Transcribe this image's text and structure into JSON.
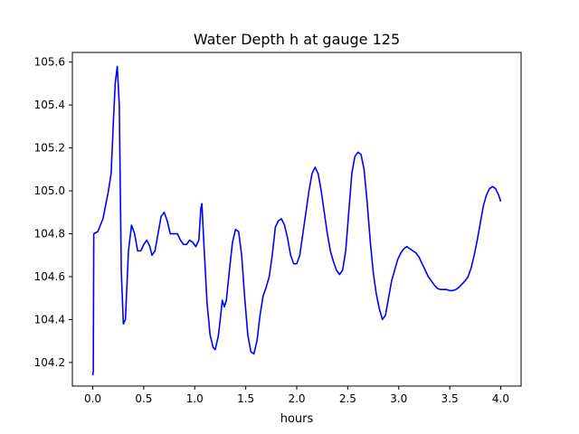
{
  "chart_data": {
    "type": "line",
    "title": "Water Depth h at gauge 125",
    "xlabel": "hours",
    "ylabel": "",
    "xlim": [
      -0.2,
      4.2
    ],
    "ylim": [
      104.09,
      105.645
    ],
    "grid": false,
    "x_ticks": [
      0.0,
      0.5,
      1.0,
      1.5,
      2.0,
      2.5,
      3.0,
      3.5,
      4.0
    ],
    "x_tick_labels": [
      "0.0",
      "0.5",
      "1.0",
      "1.5",
      "2.0",
      "2.5",
      "3.0",
      "3.5",
      "4.0"
    ],
    "y_ticks": [
      104.2,
      104.4,
      104.6,
      104.8,
      105.0,
      105.2,
      105.4,
      105.6
    ],
    "y_tick_labels": [
      "104.2",
      "104.4",
      "104.6",
      "104.8",
      "105.0",
      "105.2",
      "105.4",
      "105.6"
    ],
    "series": [
      {
        "color": "#0000ff",
        "points": [
          [
            0.0,
            104.14
          ],
          [
            0.005,
            104.16
          ],
          [
            0.01,
            104.8
          ],
          [
            0.05,
            104.81
          ],
          [
            0.1,
            104.87
          ],
          [
            0.15,
            104.99
          ],
          [
            0.18,
            105.08
          ],
          [
            0.2,
            105.3
          ],
          [
            0.22,
            105.5
          ],
          [
            0.24,
            105.58
          ],
          [
            0.26,
            105.4
          ],
          [
            0.28,
            104.62
          ],
          [
            0.3,
            104.38
          ],
          [
            0.32,
            104.4
          ],
          [
            0.35,
            104.72
          ],
          [
            0.38,
            104.84
          ],
          [
            0.41,
            104.8
          ],
          [
            0.44,
            104.72
          ],
          [
            0.47,
            104.72
          ],
          [
            0.5,
            104.75
          ],
          [
            0.53,
            104.77
          ],
          [
            0.56,
            104.74
          ],
          [
            0.58,
            104.7
          ],
          [
            0.61,
            104.72
          ],
          [
            0.64,
            104.8
          ],
          [
            0.67,
            104.88
          ],
          [
            0.7,
            104.9
          ],
          [
            0.73,
            104.86
          ],
          [
            0.76,
            104.8
          ],
          [
            0.8,
            104.8
          ],
          [
            0.83,
            104.8
          ],
          [
            0.86,
            104.77
          ],
          [
            0.89,
            104.75
          ],
          [
            0.92,
            104.75
          ],
          [
            0.95,
            104.77
          ],
          [
            0.98,
            104.76
          ],
          [
            1.01,
            104.74
          ],
          [
            1.04,
            104.77
          ],
          [
            1.06,
            104.92
          ],
          [
            1.07,
            104.94
          ],
          [
            1.09,
            104.75
          ],
          [
            1.12,
            104.48
          ],
          [
            1.15,
            104.33
          ],
          [
            1.18,
            104.27
          ],
          [
            1.2,
            104.26
          ],
          [
            1.23,
            104.32
          ],
          [
            1.25,
            104.4
          ],
          [
            1.27,
            104.49
          ],
          [
            1.29,
            104.46
          ],
          [
            1.31,
            104.49
          ],
          [
            1.34,
            104.63
          ],
          [
            1.37,
            104.76
          ],
          [
            1.4,
            104.82
          ],
          [
            1.43,
            104.81
          ],
          [
            1.46,
            104.7
          ],
          [
            1.49,
            104.5
          ],
          [
            1.52,
            104.33
          ],
          [
            1.55,
            104.25
          ],
          [
            1.58,
            104.24
          ],
          [
            1.61,
            104.3
          ],
          [
            1.64,
            104.42
          ],
          [
            1.67,
            104.51
          ],
          [
            1.7,
            104.55
          ],
          [
            1.73,
            104.6
          ],
          [
            1.76,
            104.7
          ],
          [
            1.79,
            104.83
          ],
          [
            1.82,
            104.86
          ],
          [
            1.85,
            104.87
          ],
          [
            1.88,
            104.84
          ],
          [
            1.91,
            104.78
          ],
          [
            1.94,
            104.7
          ],
          [
            1.97,
            104.66
          ],
          [
            2.0,
            104.66
          ],
          [
            2.03,
            104.7
          ],
          [
            2.06,
            104.8
          ],
          [
            2.09,
            104.9
          ],
          [
            2.12,
            105.0
          ],
          [
            2.15,
            105.08
          ],
          [
            2.18,
            105.11
          ],
          [
            2.21,
            105.08
          ],
          [
            2.24,
            105.0
          ],
          [
            2.27,
            104.9
          ],
          [
            2.3,
            104.8
          ],
          [
            2.33,
            104.72
          ],
          [
            2.36,
            104.67
          ],
          [
            2.39,
            104.63
          ],
          [
            2.42,
            104.61
          ],
          [
            2.45,
            104.63
          ],
          [
            2.48,
            104.72
          ],
          [
            2.51,
            104.9
          ],
          [
            2.54,
            105.08
          ],
          [
            2.57,
            105.16
          ],
          [
            2.6,
            105.18
          ],
          [
            2.63,
            105.17
          ],
          [
            2.66,
            105.1
          ],
          [
            2.69,
            104.95
          ],
          [
            2.72,
            104.77
          ],
          [
            2.75,
            104.62
          ],
          [
            2.78,
            104.52
          ],
          [
            2.81,
            104.45
          ],
          [
            2.84,
            104.4
          ],
          [
            2.87,
            104.42
          ],
          [
            2.9,
            104.5
          ],
          [
            2.93,
            104.58
          ],
          [
            2.96,
            104.63
          ],
          [
            2.99,
            104.68
          ],
          [
            3.02,
            104.71
          ],
          [
            3.05,
            104.73
          ],
          [
            3.08,
            104.74
          ],
          [
            3.11,
            104.73
          ],
          [
            3.14,
            104.72
          ],
          [
            3.17,
            104.71
          ],
          [
            3.2,
            104.69
          ],
          [
            3.23,
            104.66
          ],
          [
            3.26,
            104.63
          ],
          [
            3.29,
            104.6
          ],
          [
            3.32,
            104.58
          ],
          [
            3.35,
            104.56
          ],
          [
            3.38,
            104.545
          ],
          [
            3.41,
            104.54
          ],
          [
            3.44,
            104.54
          ],
          [
            3.47,
            104.54
          ],
          [
            3.5,
            104.535
          ],
          [
            3.53,
            104.535
          ],
          [
            3.56,
            104.54
          ],
          [
            3.59,
            104.55
          ],
          [
            3.62,
            104.565
          ],
          [
            3.65,
            104.58
          ],
          [
            3.68,
            104.6
          ],
          [
            3.71,
            104.64
          ],
          [
            3.74,
            104.7
          ],
          [
            3.77,
            104.77
          ],
          [
            3.8,
            104.85
          ],
          [
            3.83,
            104.93
          ],
          [
            3.86,
            104.98
          ],
          [
            3.89,
            105.01
          ],
          [
            3.92,
            105.02
          ],
          [
            3.95,
            105.01
          ],
          [
            3.98,
            104.98
          ],
          [
            4.0,
            104.95
          ]
        ]
      }
    ]
  }
}
